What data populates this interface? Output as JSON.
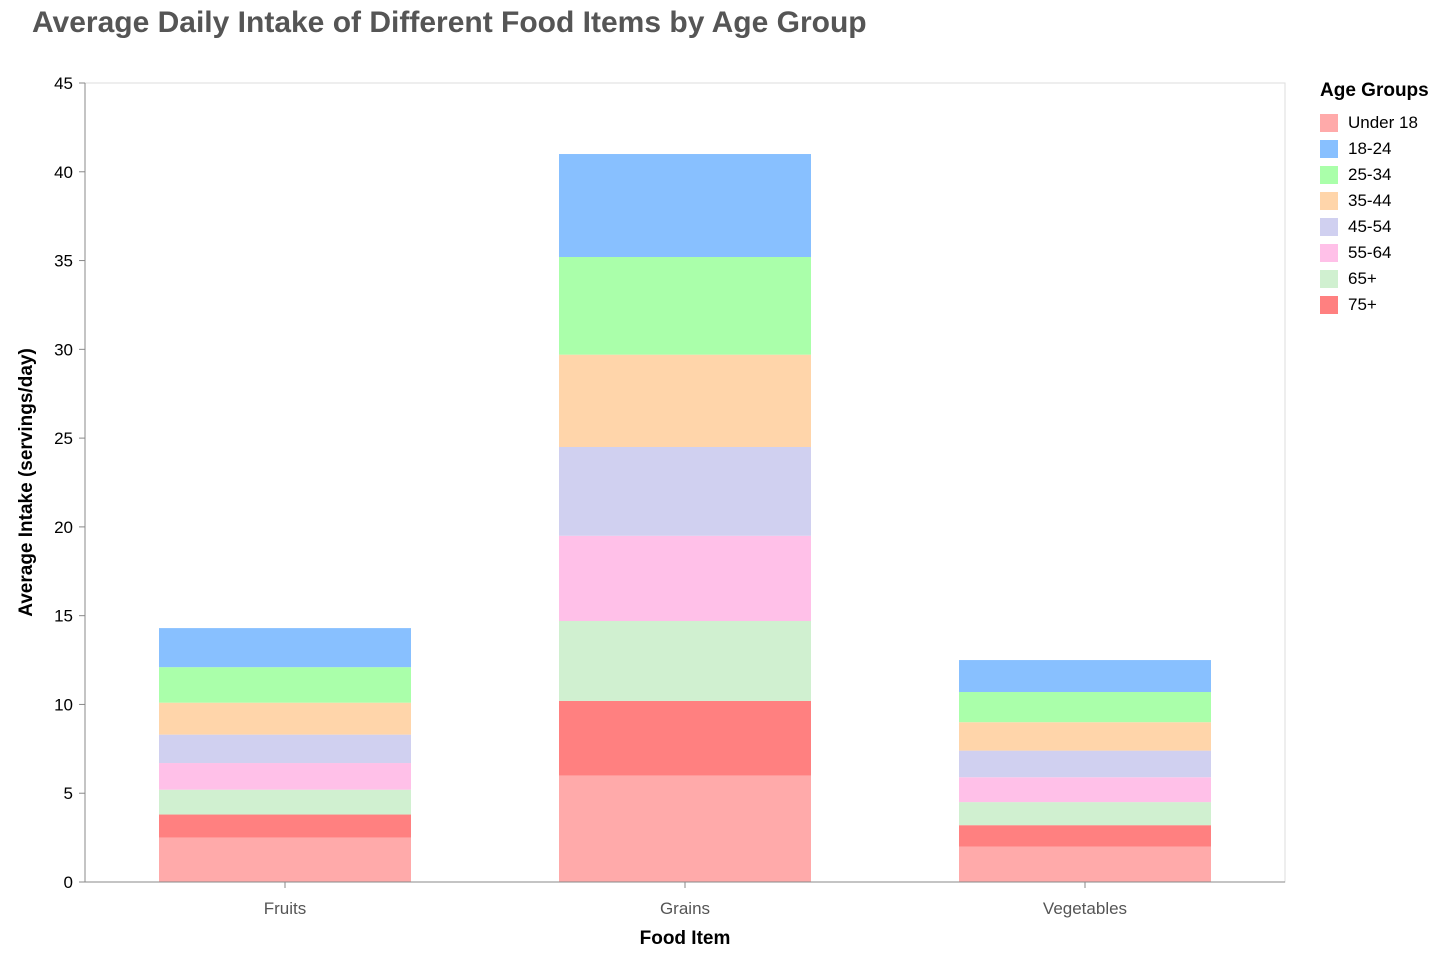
{
  "chart_data": {
    "type": "bar",
    "stacked": true,
    "title": "Average Daily Intake of Different Food Items by Age Group",
    "xlabel": "Food Item",
    "ylabel": "Average Intake (servings/day)",
    "ylim": [
      0,
      45
    ],
    "yticks": [
      0,
      5,
      10,
      15,
      20,
      25,
      30,
      35,
      40,
      45
    ],
    "grid": false,
    "legend_title": "Age Groups",
    "legend_position": "right",
    "categories": [
      "Fruits",
      "Grains",
      "Vegetables"
    ],
    "series": [
      {
        "name": "Under 18",
        "color": "#ffaaaa",
        "values": [
          2.5,
          6.0,
          2.0
        ]
      },
      {
        "name": "75+",
        "color": "#ff8080",
        "values": [
          1.3,
          4.2,
          1.2
        ]
      },
      {
        "name": "65+",
        "color": "#d0f0d0",
        "values": [
          1.4,
          4.5,
          1.3
        ]
      },
      {
        "name": "55-64",
        "color": "#ffc0e8",
        "values": [
          1.5,
          4.8,
          1.4
        ]
      },
      {
        "name": "45-54",
        "color": "#d0d0f0",
        "values": [
          1.6,
          5.0,
          1.5
        ]
      },
      {
        "name": "35-44",
        "color": "#ffd5aa",
        "values": [
          1.8,
          5.2,
          1.6
        ]
      },
      {
        "name": "25-34",
        "color": "#aaffaa",
        "values": [
          2.0,
          5.5,
          1.7
        ]
      },
      {
        "name": "18-24",
        "color": "#88c0ff",
        "values": [
          2.2,
          5.8,
          1.8
        ]
      }
    ],
    "legend_order": [
      "Under 18",
      "18-24",
      "25-34",
      "35-44",
      "45-54",
      "55-64",
      "65+",
      "75+"
    ]
  }
}
